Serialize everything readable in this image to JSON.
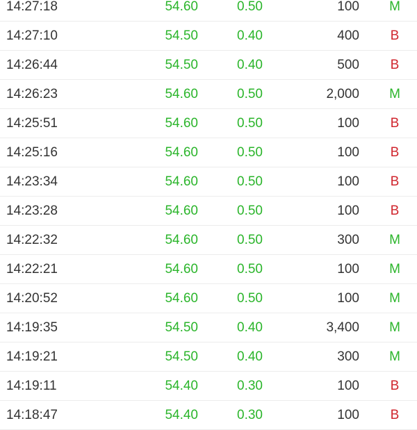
{
  "colors": {
    "up": "#2bb52b",
    "sell": "#d0262e",
    "buy_flag": "#2bb52b",
    "text": "#333333"
  },
  "trades": [
    {
      "time": "14:27:18",
      "price": "54.60",
      "change": "0.50",
      "volume": "100",
      "flag": "M"
    },
    {
      "time": "14:27:10",
      "price": "54.50",
      "change": "0.40",
      "volume": "400",
      "flag": "B"
    },
    {
      "time": "14:26:44",
      "price": "54.50",
      "change": "0.40",
      "volume": "500",
      "flag": "B"
    },
    {
      "time": "14:26:23",
      "price": "54.60",
      "change": "0.50",
      "volume": "2,000",
      "flag": "M"
    },
    {
      "time": "14:25:51",
      "price": "54.60",
      "change": "0.50",
      "volume": "100",
      "flag": "B"
    },
    {
      "time": "14:25:16",
      "price": "54.60",
      "change": "0.50",
      "volume": "100",
      "flag": "B"
    },
    {
      "time": "14:23:34",
      "price": "54.60",
      "change": "0.50",
      "volume": "100",
      "flag": "B"
    },
    {
      "time": "14:23:28",
      "price": "54.60",
      "change": "0.50",
      "volume": "100",
      "flag": "B"
    },
    {
      "time": "14:22:32",
      "price": "54.60",
      "change": "0.50",
      "volume": "300",
      "flag": "M"
    },
    {
      "time": "14:22:21",
      "price": "54.60",
      "change": "0.50",
      "volume": "100",
      "flag": "M"
    },
    {
      "time": "14:20:52",
      "price": "54.60",
      "change": "0.50",
      "volume": "100",
      "flag": "M"
    },
    {
      "time": "14:19:35",
      "price": "54.50",
      "change": "0.40",
      "volume": "3,400",
      "flag": "M"
    },
    {
      "time": "14:19:21",
      "price": "54.50",
      "change": "0.40",
      "volume": "300",
      "flag": "M"
    },
    {
      "time": "14:19:11",
      "price": "54.40",
      "change": "0.30",
      "volume": "100",
      "flag": "B"
    },
    {
      "time": "14:18:47",
      "price": "54.40",
      "change": "0.30",
      "volume": "100",
      "flag": "B"
    }
  ]
}
